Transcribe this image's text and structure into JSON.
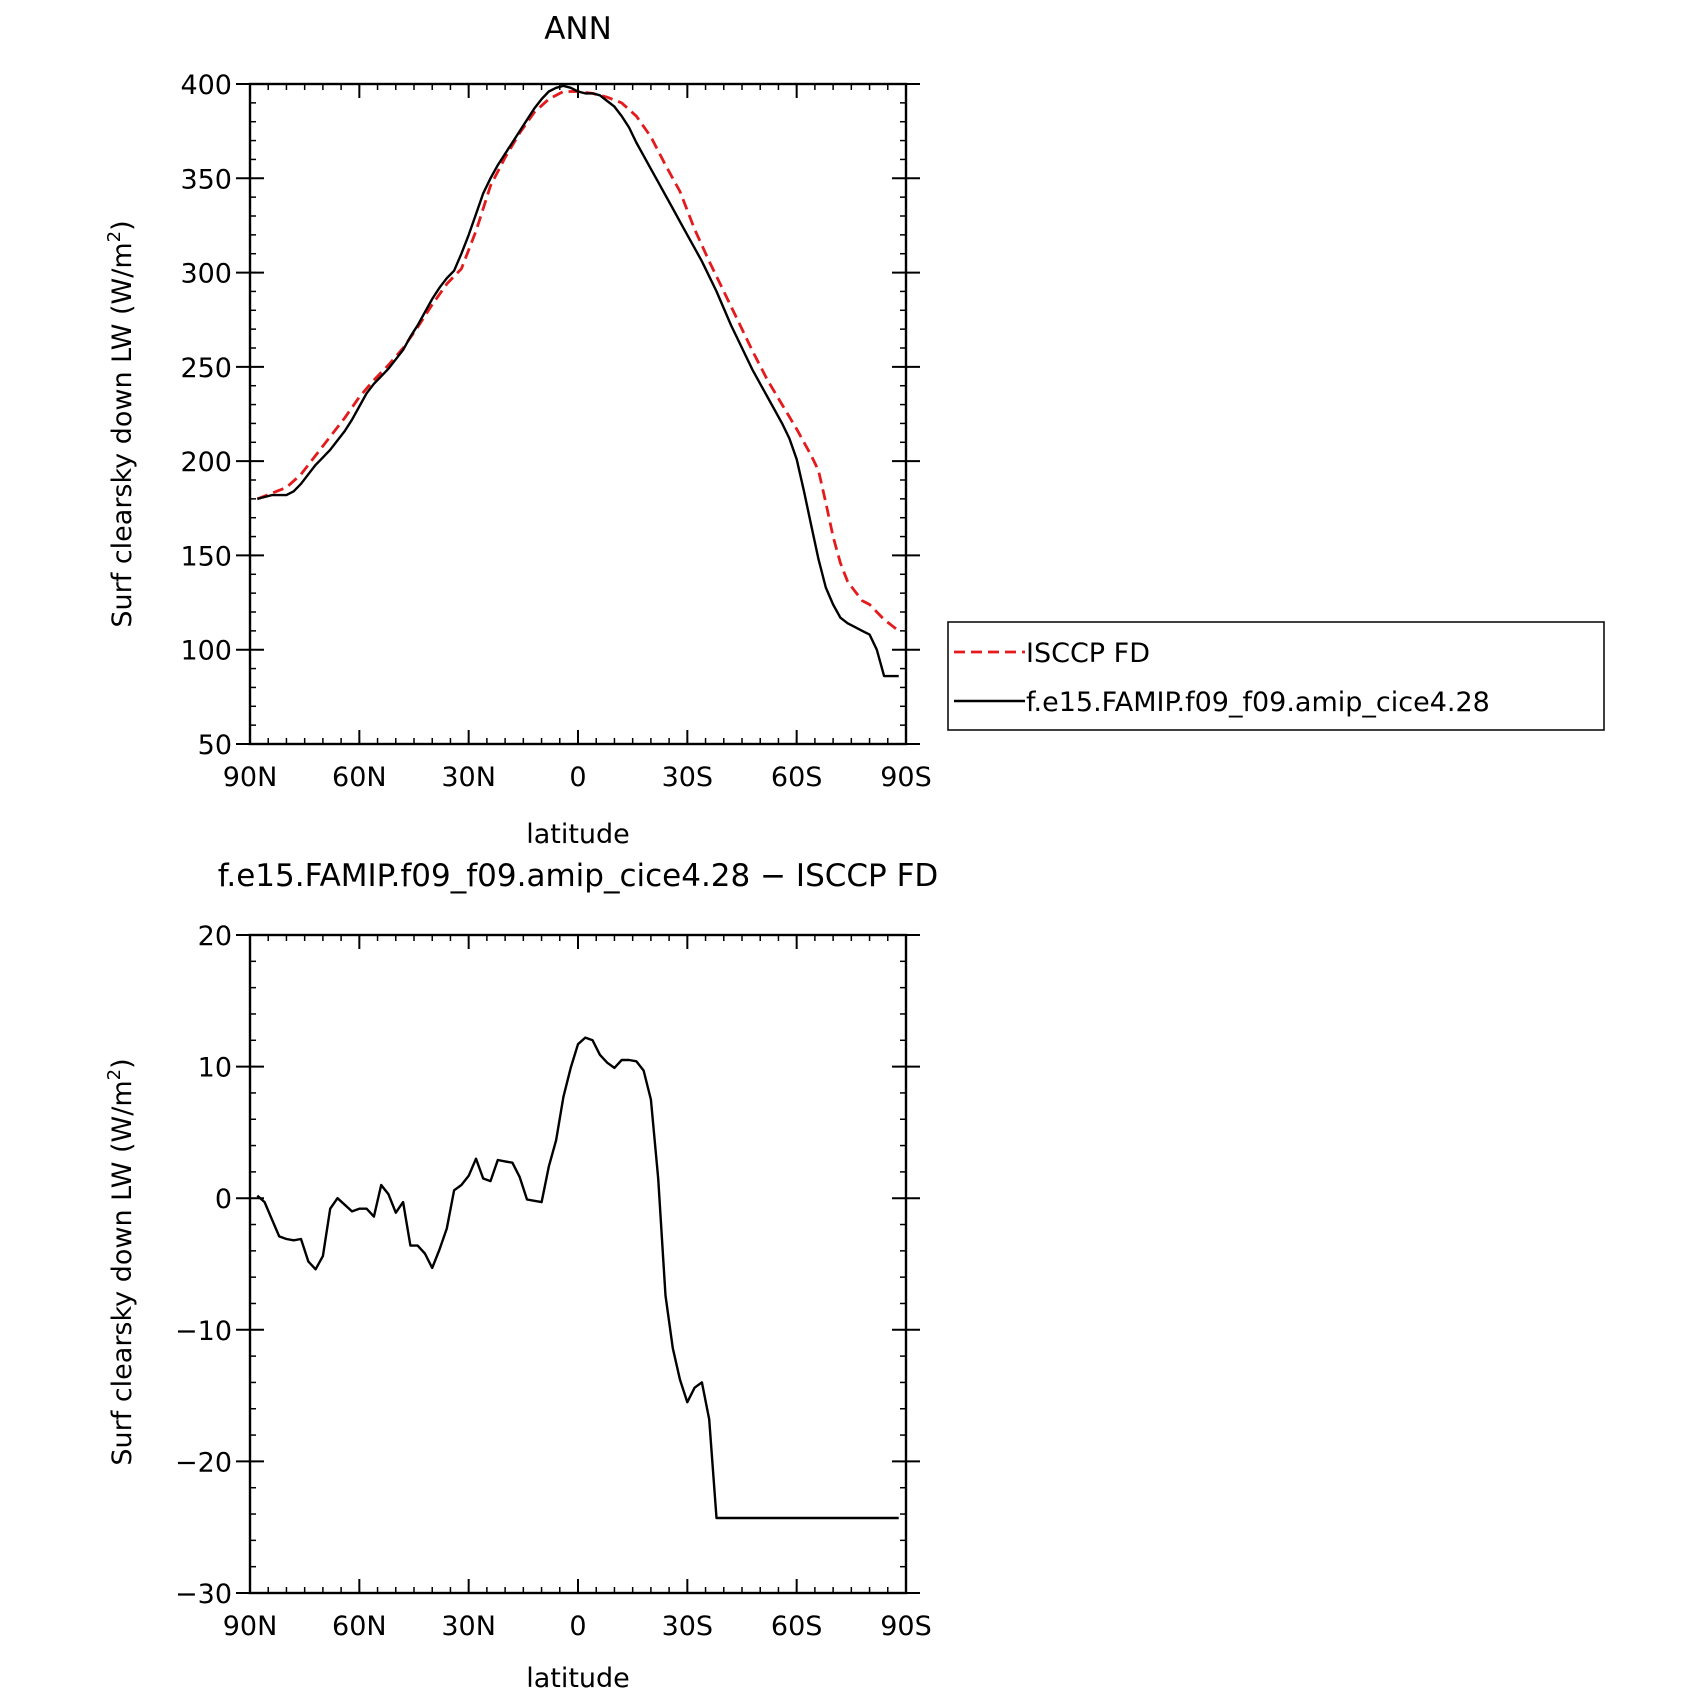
{
  "chart_data": [
    {
      "type": "line",
      "title": "ANN",
      "xlabel": "latitude",
      "ylabel_main": "Surf clearsky down LW (W/m",
      "ylabel_sup": "2",
      "ylabel_close": ")",
      "xlim": [
        90,
        -90
      ],
      "ylim": [
        50,
        400
      ],
      "xticks": [
        {
          "value": 90,
          "label": "90N"
        },
        {
          "value": 60,
          "label": "60N"
        },
        {
          "value": 30,
          "label": "30N"
        },
        {
          "value": 0,
          "label": "0"
        },
        {
          "value": -30,
          "label": "30S"
        },
        {
          "value": -60,
          "label": "60S"
        },
        {
          "value": -90,
          "label": "90S"
        }
      ],
      "yticks": [
        {
          "value": 400,
          "label": "400"
        },
        {
          "value": 350,
          "label": "350"
        },
        {
          "value": 300,
          "label": "300"
        },
        {
          "value": 250,
          "label": "250"
        },
        {
          "value": 200,
          "label": "200"
        },
        {
          "value": 150,
          "label": "150"
        },
        {
          "value": 100,
          "label": "100"
        },
        {
          "value": 50,
          "label": "50"
        }
      ],
      "legend_position": "right",
      "series": [
        {
          "name": "ISCCP FD",
          "color": "#e41a1c",
          "dash": true,
          "x": [
            88,
            84,
            80,
            76,
            72,
            68,
            64,
            60,
            56,
            52,
            48,
            44,
            40,
            36,
            32,
            28,
            24,
            20,
            16,
            12,
            8,
            4,
            0,
            -4,
            -8,
            -12,
            -16,
            -20,
            -24,
            -28,
            -32,
            -36,
            -40,
            -44,
            -48,
            -52,
            -56,
            -60,
            -64,
            -66,
            -68,
            -70,
            -72,
            -74,
            -76,
            -78,
            -80,
            -82,
            -84,
            -86,
            -88
          ],
          "values": [
            180,
            183,
            186,
            193,
            203,
            213,
            223,
            234,
            243,
            251,
            260,
            271,
            283,
            294,
            302,
            322,
            346,
            361,
            374,
            385,
            392,
            396,
            396,
            395,
            393,
            390,
            383,
            372,
            357,
            343,
            323,
            306,
            290,
            274,
            258,
            243,
            230,
            217,
            203,
            195,
            178,
            160,
            146,
            136,
            131,
            126,
            124,
            120,
            116,
            113,
            110
          ]
        },
        {
          "name": "f.e15.FAMIP.f09_f09.amip_cice4.28",
          "color": "#000000",
          "dash": false,
          "x": [
            88,
            86,
            84,
            82,
            80,
            78,
            76,
            74,
            72,
            70,
            68,
            66,
            64,
            62,
            60,
            58,
            56,
            54,
            52,
            50,
            48,
            46,
            44,
            42,
            40,
            38,
            36,
            34,
            32,
            30,
            28,
            26,
            24,
            22,
            20,
            18,
            16,
            14,
            12,
            10,
            8,
            6,
            4,
            2,
            0,
            -2,
            -4,
            -6,
            -8,
            -10,
            -12,
            -14,
            -16,
            -18,
            -20,
            -22,
            -24,
            -26,
            -28,
            -30,
            -32,
            -34,
            -36,
            -38,
            -40,
            -42,
            -44,
            -46,
            -48,
            -50,
            -52,
            -54,
            -56,
            -58,
            -60,
            -62,
            -64,
            -66,
            -68,
            -70,
            -72,
            -74,
            -76,
            -78,
            -80,
            -82,
            -84,
            -86,
            -88
          ],
          "values": [
            180,
            181,
            182,
            182,
            182,
            184,
            188,
            193,
            198,
            202,
            206,
            211,
            216,
            222,
            229,
            236,
            241,
            245,
            249,
            254,
            259,
            266,
            272,
            279,
            286,
            292,
            297,
            301,
            310,
            320,
            331,
            342,
            350,
            357,
            363,
            369,
            375,
            381,
            387,
            392,
            396,
            398,
            399,
            398,
            396,
            395,
            395,
            394,
            391,
            388,
            383,
            377,
            369,
            362,
            355,
            348,
            341,
            334,
            327,
            320,
            313,
            306,
            298,
            290,
            281,
            272,
            264,
            256,
            248,
            241,
            234,
            227,
            220,
            212,
            201,
            184,
            166,
            148,
            133,
            124,
            117,
            114,
            112,
            110,
            108,
            100,
            86,
            86,
            86
          ]
        }
      ]
    },
    {
      "type": "line",
      "title": "f.e15.FAMIP.f09_f09.amip_cice4.28 − ISCCP FD",
      "xlabel": "latitude",
      "ylabel_main": "Surf clearsky down LW (W/m",
      "ylabel_sup": "2",
      "ylabel_close": ")",
      "xlim": [
        90,
        -90
      ],
      "ylim": [
        -30,
        20
      ],
      "xticks": [
        {
          "value": 90,
          "label": "90N"
        },
        {
          "value": 60,
          "label": "60N"
        },
        {
          "value": 30,
          "label": "30N"
        },
        {
          "value": 0,
          "label": "0"
        },
        {
          "value": -30,
          "label": "30S"
        },
        {
          "value": -60,
          "label": "60S"
        },
        {
          "value": -90,
          "label": "90S"
        }
      ],
      "yticks": [
        {
          "value": 20,
          "label": "20"
        },
        {
          "value": 10,
          "label": "10"
        },
        {
          "value": 0,
          "label": "0"
        },
        {
          "value": -10,
          "label": "−10"
        },
        {
          "value": -20,
          "label": "−20"
        },
        {
          "value": -30,
          "label": "−30"
        }
      ],
      "series": [
        {
          "color": "#000000",
          "dash": false,
          "x": [
            88,
            86,
            84,
            82,
            80,
            78,
            76,
            74,
            72,
            70,
            68,
            66,
            64,
            62,
            60,
            58,
            56,
            54,
            52,
            50,
            48,
            46,
            44,
            42,
            40,
            38,
            36,
            34,
            32,
            30,
            28,
            26,
            24,
            22,
            20,
            18,
            16,
            14,
            12,
            10,
            8,
            6,
            4,
            2,
            0,
            -2,
            -4,
            -6,
            -8,
            -10,
            -12,
            -14,
            -16,
            -18,
            -20,
            -22,
            -24,
            -26,
            -28,
            -30,
            -32,
            -34,
            -36,
            -38,
            -40,
            -42,
            -44,
            -46,
            -48,
            -50,
            -52,
            -54,
            -56,
            -58,
            -60,
            -62,
            -64,
            -66,
            -68,
            -70,
            -72,
            -74,
            -76,
            -78,
            -80,
            -82,
            -84,
            -86,
            -88
          ],
          "values": [
            0.2,
            -0.3,
            -1.6,
            -2.9,
            -3.1,
            -3.2,
            -3.1,
            -4.8,
            -5.4,
            -4.4,
            -0.8,
            0,
            -0.5,
            -1.0,
            -0.8,
            -0.8,
            -1.4,
            1.0,
            0.3,
            -1.1,
            -0.3,
            -3.6,
            -3.6,
            -4.2,
            -5.3,
            -3.9,
            -2.3,
            0.6,
            1.0,
            1.7,
            3.0,
            1.5,
            1.3,
            2.9,
            2.8,
            2.7,
            1.6,
            -0.1,
            -0.2,
            -0.3,
            2.4,
            4.4,
            7.7,
            9.9,
            11.7,
            12.2,
            12.0,
            10.9,
            10.3,
            9.9,
            10.5,
            10.5,
            10.4,
            9.7,
            7.5,
            1.5,
            -7.4,
            -11.4,
            -13.8,
            -15.5,
            -14.4,
            -14.0,
            -16.8,
            -24.3,
            -24.3,
            -24.3,
            -24.3,
            -24.3,
            -24.3,
            -24.3,
            -24.3,
            -24.3,
            -24.3,
            -24.3,
            -24.3,
            -24.3,
            -24.3,
            -24.3,
            -24.3,
            -24.3,
            -24.3,
            -24.3,
            -24.3,
            -24.3,
            -24.3,
            -24.3,
            -24.3,
            -24.3,
            -24.3
          ]
        }
      ]
    }
  ]
}
